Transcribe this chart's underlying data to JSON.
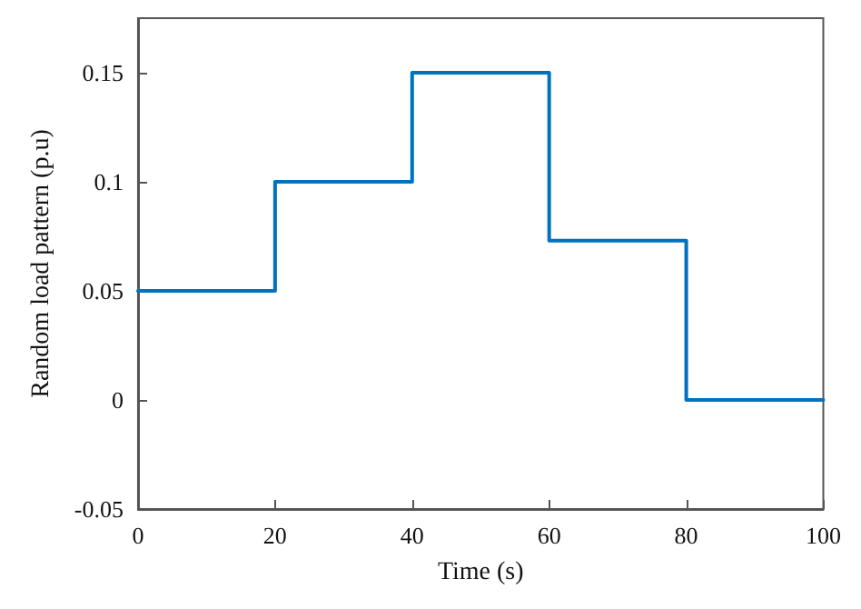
{
  "chart_data": {
    "type": "step",
    "xlabel": "Time (s)",
    "ylabel": "Random load pattern (p.u)",
    "x": [
      0,
      20,
      40,
      60,
      80,
      100
    ],
    "series": [
      {
        "color": "#0072bd",
        "values": [
          0.05,
          0.1,
          0.15,
          0.073,
          0,
          0
        ]
      }
    ],
    "xlim": [
      0,
      100
    ],
    "xticks": [
      0,
      20,
      40,
      60,
      80,
      100
    ],
    "ylim": [
      -0.05,
      0.175
    ],
    "yticks": [
      -0.05,
      0,
      0.05,
      0.1,
      0.15
    ],
    "grid": false,
    "marker": "none",
    "line_style": "solid"
  }
}
